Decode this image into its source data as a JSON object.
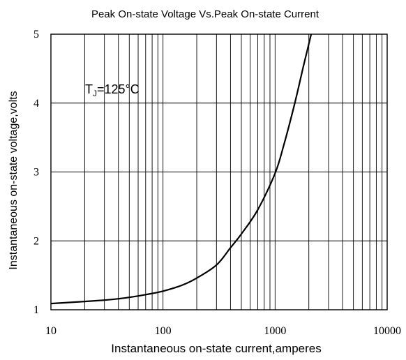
{
  "chart_data": {
    "type": "line",
    "title": "Peak On-state Voltage Vs.Peak On-state Current",
    "xlabel": "Instantaneous on-state current,amperes",
    "ylabel": "Instantaneous on-state voltage,volts",
    "xscale": "log",
    "xlim": [
      10,
      10000
    ],
    "ylim": [
      1,
      5
    ],
    "xticks": [
      10,
      100,
      1000,
      10000
    ],
    "xtick_labels": [
      "10",
      "100",
      "1000",
      "10000"
    ],
    "yticks": [
      1,
      2,
      3,
      4,
      5
    ],
    "ytick_labels": [
      "1",
      "2",
      "3",
      "4",
      "5"
    ],
    "grid": true,
    "annotation": {
      "main": "T",
      "sub": "J",
      "rest": "=125°C"
    },
    "line_color": "#000000",
    "series": [
      {
        "x": [
          10,
          20,
          30,
          40,
          50,
          70,
          100,
          150,
          200,
          300,
          400,
          500,
          700,
          1000,
          1200,
          1500,
          1800,
          2100
        ],
        "y": [
          1.09,
          1.12,
          1.14,
          1.16,
          1.18,
          1.22,
          1.27,
          1.36,
          1.46,
          1.65,
          1.9,
          2.1,
          2.45,
          2.98,
          3.4,
          4.0,
          4.55,
          5.0
        ]
      }
    ]
  }
}
